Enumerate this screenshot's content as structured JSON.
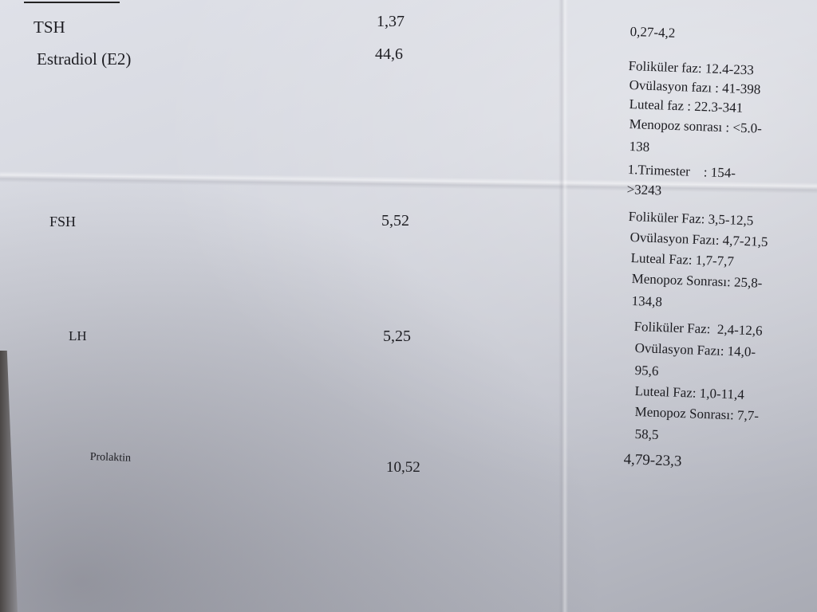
{
  "tests": [
    {
      "name": "TSH",
      "value": "1,37",
      "reference": [
        "0,27-4,2"
      ]
    },
    {
      "name": "Estradiol (E2)",
      "value": "44,6",
      "reference": [
        "Foliküler faz: 12.4-233",
        "Ovülasyon fazı : 41-398",
        "Luteal faz : 22.3-341",
        "Menopoz sonrası : <5.0-",
        "138",
        "1.Trimester    : 154-",
        ">3243"
      ]
    },
    {
      "name": "FSH",
      "value": "5,52",
      "reference": [
        "Foliküler Faz: 3,5-12,5",
        "Ovülasyon Fazı: 4,7-21,5",
        "Luteal Faz: 1,7-7,7",
        "Menopoz Sonrası: 25,8-",
        "134,8"
      ]
    },
    {
      "name": "LH",
      "value": "5,25",
      "reference": [
        "Foliküler Faz:  2,4-12,6",
        "Ovülasyon Fazı: 14,0-",
        "95,6",
        "Luteal Faz: 1,0-11,4",
        "Menopoz Sonrası: 7,7-",
        "58,5"
      ]
    },
    {
      "name": "Prolaktin",
      "value": "10,52",
      "reference": [
        "4,79-23,3"
      ]
    }
  ]
}
